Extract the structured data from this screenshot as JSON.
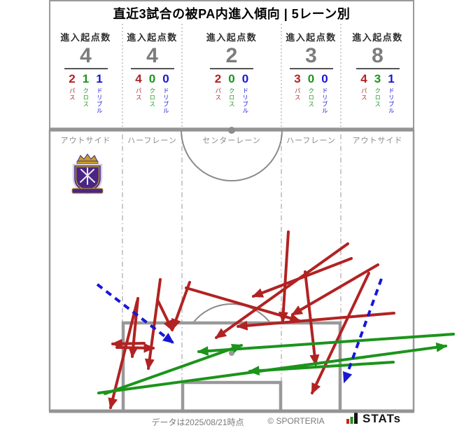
{
  "title": "直近3試合の被PA内進入傾向 | 5レーン別",
  "stat_label": "進入起点数",
  "breakdown_labels": {
    "pass": "パス",
    "cross": "クロス",
    "dribble": "ドリブル"
  },
  "columns": [
    {
      "lane_label": "アウトサイド",
      "total": "4",
      "pass": "2",
      "cross": "1",
      "dribble": "1"
    },
    {
      "lane_label": "ハーフレーン",
      "total": "4",
      "pass": "4",
      "cross": "0",
      "dribble": "0"
    },
    {
      "lane_label": "センターレーン",
      "total": "2",
      "pass": "2",
      "cross": "0",
      "dribble": "0"
    },
    {
      "lane_label": "ハーフレーン",
      "total": "3",
      "pass": "3",
      "cross": "0",
      "dribble": "0"
    },
    {
      "lane_label": "アウトサイド",
      "total": "8",
      "pass": "4",
      "cross": "3",
      "dribble": "1"
    }
  ],
  "colors": {
    "pass": "#b22222",
    "cross": "#1b941b",
    "dribble": "#1717d6",
    "pitch_line": "#999999",
    "thick_line": "#949494",
    "number_gray": "#7d7d7d",
    "crest_purple": "#4a2683",
    "crest_gold": "#c79c27"
  },
  "footer": {
    "data_note": "データは2025/08/21時点",
    "copyright": "© SPORTERIA",
    "brand": "STATs"
  },
  "chart_data": [
    {
      "type": "table",
      "title": "進入起点数 by lane (直近3試合)",
      "columns": [
        "レーン",
        "進入起点数",
        "パス",
        "クロス",
        "ドリブル"
      ],
      "rows": [
        [
          "アウトサイド(左)",
          4,
          2,
          1,
          1
        ],
        [
          "ハーフレーン(左)",
          4,
          4,
          0,
          0
        ],
        [
          "センターレーン",
          2,
          2,
          0,
          0
        ],
        [
          "ハーフレーン(右)",
          3,
          3,
          0,
          0
        ],
        [
          "アウトサイド(右)",
          8,
          4,
          3,
          1
        ]
      ]
    },
    {
      "type": "scatter",
      "title": "被PA内進入の軌跡 (px coords, goal at bottom)",
      "series": [
        {
          "name": "パス",
          "color": "#b22222",
          "style": "solid",
          "segments": [
            [
              197,
              426,
              189,
              509
            ],
            [
              229,
              399,
              212,
              526
            ],
            [
              271,
              403,
              247,
              469
            ],
            [
              206,
              490,
              161,
              491
            ],
            [
              167,
              496,
              219,
              497
            ],
            [
              196,
              430,
              158,
              582
            ],
            [
              497,
              348,
              309,
              482
            ],
            [
              563,
              447,
              340,
              466
            ],
            [
              412,
              331,
              404,
              459
            ],
            [
              540,
              378,
              418,
              449
            ],
            [
              436,
              388,
              451,
              520
            ],
            [
              502,
              369,
              362,
              423
            ],
            [
              266,
              411,
              428,
              458
            ],
            [
              225,
              428,
              246,
              471
            ],
            [
              527,
              390,
              446,
              561
            ]
          ]
        },
        {
          "name": "クロス",
          "color": "#1b941b",
          "style": "solid",
          "segments": [
            [
              648,
              477,
              284,
              502
            ],
            [
              562,
              517,
              357,
              530
            ],
            [
              150,
              562,
              345,
              493
            ],
            [
              141,
              561,
              637,
              494
            ]
          ]
        },
        {
          "name": "ドリブル",
          "color": "#1717d6",
          "style": "dashed",
          "segments": [
            [
              139,
              406,
              247,
              489
            ],
            [
              545,
              398,
              492,
              545
            ]
          ]
        }
      ]
    }
  ]
}
